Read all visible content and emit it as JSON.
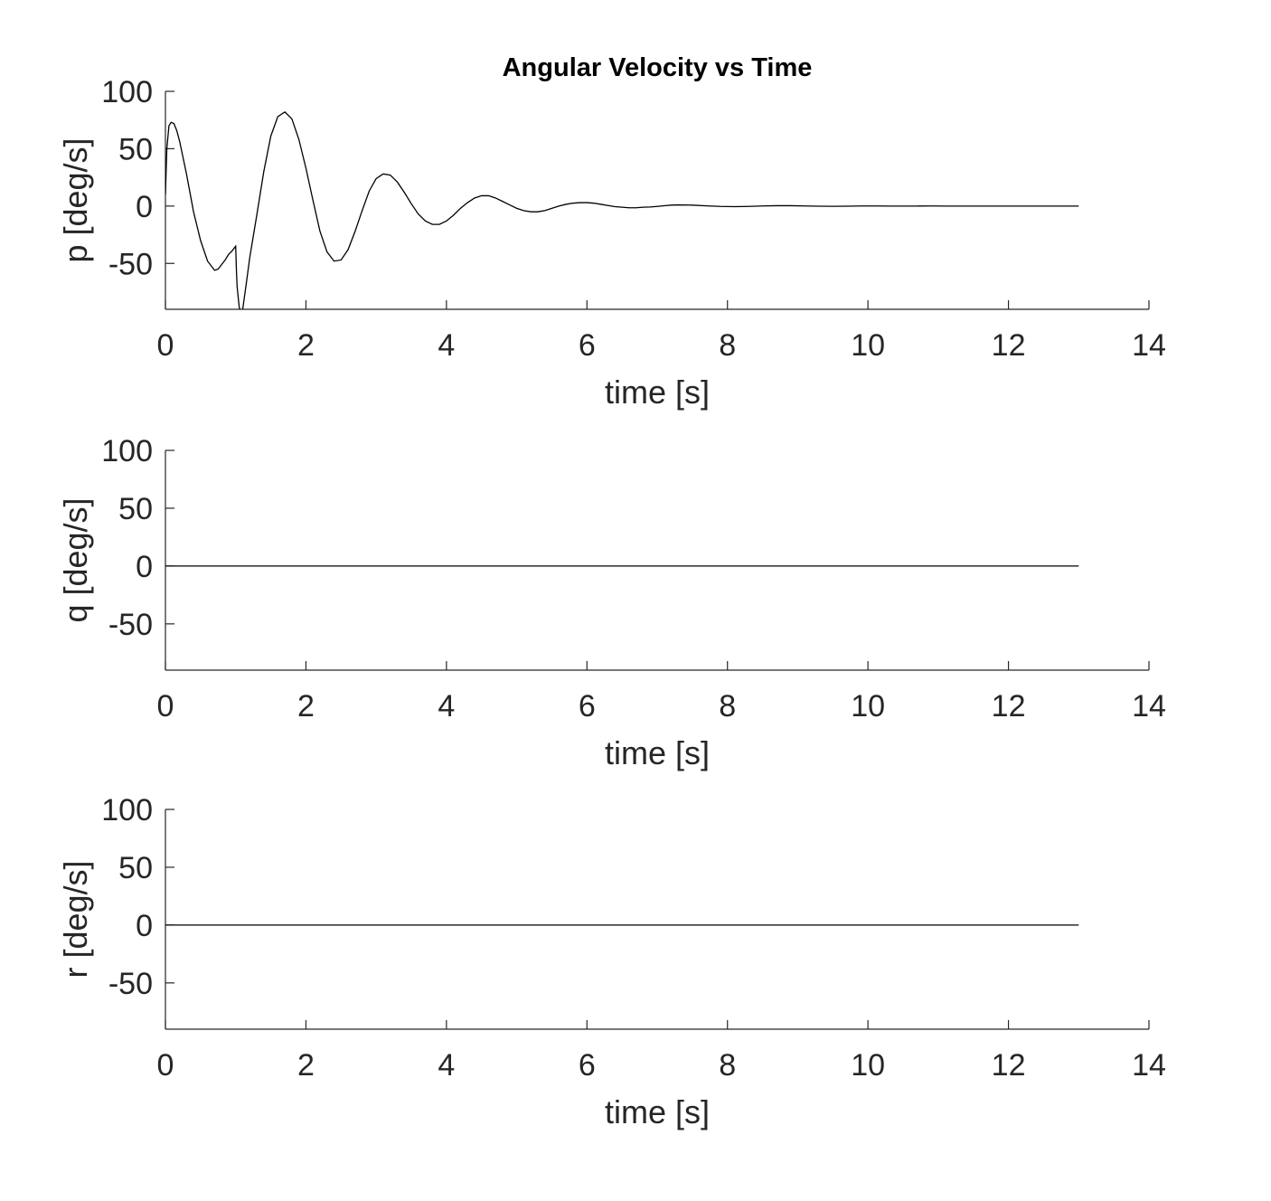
{
  "chart_data": [
    {
      "type": "line",
      "title": "Angular Velocity vs Time",
      "xlabel": "time [s]",
      "ylabel": "p [deg/s]",
      "xlim": [
        0,
        14
      ],
      "ylim": [
        -90,
        100
      ],
      "xticks": [
        "0",
        "2",
        "4",
        "6",
        "8",
        "10",
        "12",
        "14"
      ],
      "yticks": [
        "-50",
        "0",
        "50",
        "100"
      ],
      "grid": false,
      "series": [
        {
          "x": [
            0,
            0.02,
            0.05,
            0.08,
            0.12,
            0.16,
            0.2,
            0.3,
            0.4,
            0.5,
            0.6,
            0.7,
            0.75,
            0.8,
            0.85,
            0.9,
            0.95,
            1.0,
            1.01,
            1.02,
            1.05,
            1.08,
            1.1,
            1.15,
            1.2,
            1.3,
            1.4,
            1.5,
            1.6,
            1.7,
            1.8,
            1.9,
            2.0,
            2.1,
            2.2,
            2.3,
            2.4,
            2.5,
            2.6,
            2.7,
            2.8,
            2.9,
            3.0,
            3.1,
            3.2,
            3.3,
            3.4,
            3.5,
            3.6,
            3.7,
            3.8,
            3.9,
            4.0,
            4.1,
            4.2,
            4.3,
            4.4,
            4.5,
            4.6,
            4.7,
            4.8,
            4.9,
            5.0,
            5.1,
            5.2,
            5.3,
            5.4,
            5.5,
            5.6,
            5.7,
            5.8,
            5.9,
            6.0,
            6.1,
            6.2,
            6.3,
            6.4,
            6.5,
            6.6,
            6.7,
            6.8,
            6.9,
            7.0,
            7.1,
            7.2,
            7.3,
            7.5,
            7.7,
            7.9,
            8.1,
            8.3,
            8.5,
            8.7,
            8.9,
            9.1,
            9.3,
            9.5,
            9.7,
            9.9,
            10.1,
            10.3,
            10.5,
            10.7,
            10.9,
            11.1,
            11.3,
            11.5,
            11.7,
            12.0,
            12.5,
            13.0
          ],
          "y": [
            10,
            50,
            70,
            73,
            72,
            66,
            57,
            28,
            -5,
            -30,
            -48,
            -56,
            -55,
            -51,
            -47,
            -42,
            -39,
            -35,
            -55,
            -70,
            -88,
            -95,
            -90,
            -68,
            -45,
            -8,
            30,
            61,
            78,
            82,
            76,
            58,
            33,
            5,
            -22,
            -40,
            -48,
            -47,
            -38,
            -22,
            -4,
            13,
            24,
            28,
            27,
            21,
            12,
            2,
            -7,
            -13,
            -16,
            -16,
            -13,
            -8,
            -2,
            3,
            7,
            9,
            9,
            7,
            4,
            1,
            -2,
            -4,
            -5,
            -5,
            -4,
            -2,
            0,
            1.5,
            2.5,
            3,
            3,
            2.5,
            1.5,
            0.5,
            -0.5,
            -1,
            -1.5,
            -1.5,
            -1,
            -0.8,
            -0.3,
            0.3,
            0.8,
            1,
            0.8,
            0.2,
            -0.3,
            -0.5,
            -0.3,
            0.1,
            0.3,
            0.3,
            0.1,
            -0.1,
            -0.2,
            -0.1,
            0.1,
            0.1,
            0,
            -0.05,
            0,
            0.05,
            0,
            0,
            0,
            0,
            0,
            0,
            0
          ]
        }
      ]
    },
    {
      "type": "line",
      "xlabel": "time [s]",
      "ylabel": "q [deg/s]",
      "xlim": [
        0,
        14
      ],
      "ylim": [
        -90,
        100
      ],
      "xticks": [
        "0",
        "2",
        "4",
        "6",
        "8",
        "10",
        "12",
        "14"
      ],
      "yticks": [
        "-50",
        "0",
        "50",
        "100"
      ],
      "grid": false,
      "series": [
        {
          "x": [
            0,
            13
          ],
          "y": [
            0,
            0
          ]
        }
      ]
    },
    {
      "type": "line",
      "xlabel": "time [s]",
      "ylabel": "r [deg/s]",
      "xlim": [
        0,
        14
      ],
      "ylim": [
        -90,
        100
      ],
      "xticks": [
        "0",
        "2",
        "4",
        "6",
        "8",
        "10",
        "12",
        "14"
      ],
      "yticks": [
        "-50",
        "0",
        "50",
        "100"
      ],
      "grid": false,
      "series": [
        {
          "x": [
            0,
            13
          ],
          "y": [
            0,
            0
          ]
        }
      ]
    }
  ],
  "colors": {
    "line": "#000000",
    "axis": "#262626",
    "background": "#ffffff"
  }
}
